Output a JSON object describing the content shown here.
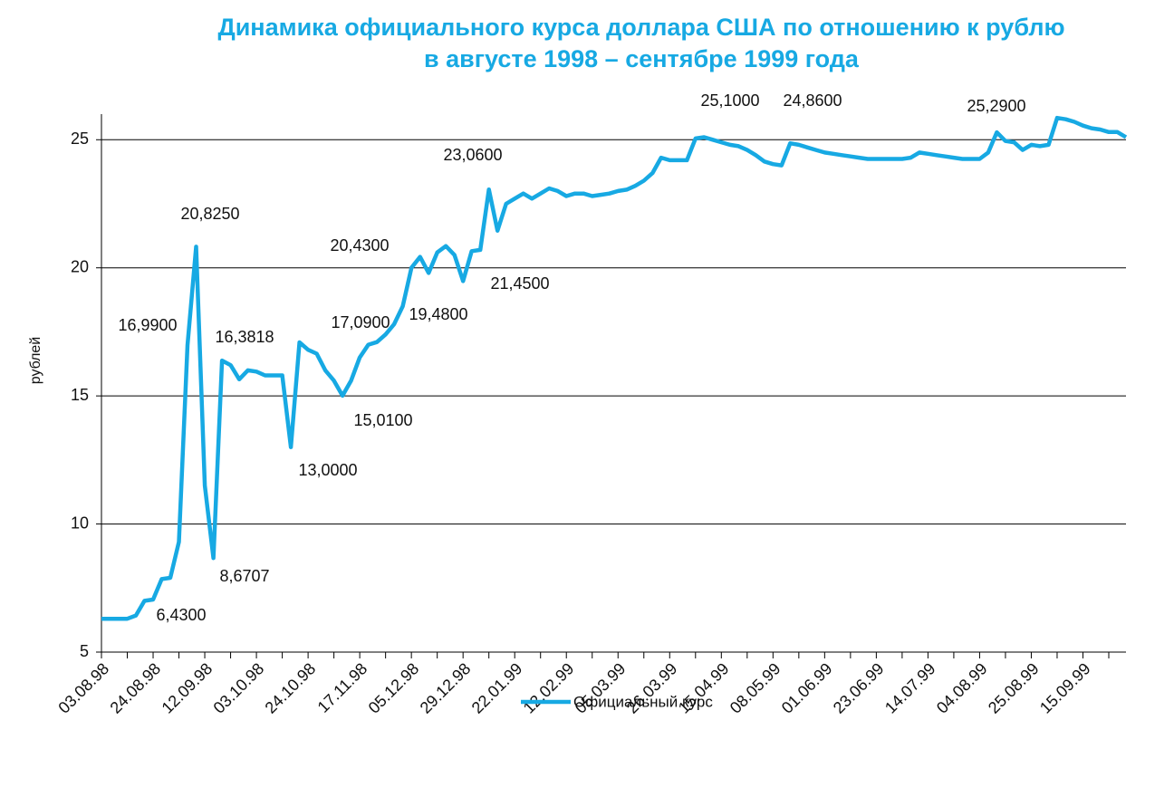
{
  "chart_data": {
    "type": "line",
    "title": "Динамика официального курса доллара США по отношению к рублю",
    "subtitle": "в августе 1998 – сентябре 1999 года",
    "y_label": "рублей",
    "categories": [
      "03.08.98",
      null,
      null,
      null,
      null,
      null,
      "24.08.98",
      null,
      null,
      null,
      null,
      null,
      "12.09.98",
      null,
      null,
      null,
      null,
      null,
      "03.10.98",
      null,
      null,
      null,
      null,
      null,
      "24.10.98",
      null,
      null,
      null,
      null,
      null,
      "17.11.98",
      null,
      null,
      null,
      null,
      null,
      "05.12.98",
      null,
      null,
      null,
      null,
      null,
      "29.12.98",
      null,
      null,
      null,
      null,
      null,
      "22.01.99",
      null,
      null,
      null,
      null,
      null,
      "12.02.99",
      null,
      null,
      null,
      null,
      null,
      "05.03.99",
      null,
      null,
      null,
      null,
      null,
      "26.03.99",
      null,
      null,
      null,
      null,
      null,
      "15.04.99",
      null,
      null,
      null,
      null,
      null,
      "08.05.99",
      null,
      null,
      null,
      null,
      null,
      "01.06.99",
      null,
      null,
      null,
      null,
      null,
      "23.06.99",
      null,
      null,
      null,
      null,
      null,
      "14.07.99",
      null,
      null,
      null,
      null,
      null,
      "04.08.99",
      null,
      null,
      null,
      null,
      null,
      "25.08.99",
      null,
      null,
      null,
      null,
      null,
      "15.09.99",
      null,
      null,
      null,
      null,
      null
    ],
    "series": [
      {
        "name": "Официальный курс",
        "color": "#17a9e3",
        "values": [
          6.3,
          6.3,
          6.3,
          6.3,
          6.43,
          7.0,
          7.05,
          7.85,
          7.9,
          9.3,
          16.99,
          20.825,
          11.5,
          8.6707,
          16.3818,
          16.2,
          15.65,
          16.0,
          15.95,
          15.8,
          15.8,
          15.8,
          13.0,
          17.09,
          16.8,
          16.65,
          16.0,
          15.6,
          15.01,
          15.6,
          16.5,
          17.0,
          17.1,
          17.4,
          17.8,
          18.5,
          20.0,
          20.43,
          19.8,
          20.6,
          20.85,
          20.5,
          19.48,
          20.65,
          20.7,
          23.06,
          21.45,
          22.5,
          22.7,
          22.9,
          22.7,
          22.9,
          23.1,
          23.0,
          22.8,
          22.9,
          22.9,
          22.8,
          22.85,
          22.9,
          23.0,
          23.05,
          23.2,
          23.4,
          23.7,
          24.3,
          24.2,
          24.2,
          24.2,
          25.05,
          25.1,
          25.0,
          24.9,
          24.8,
          24.75,
          24.6,
          24.4,
          24.15,
          24.05,
          24.0,
          24.86,
          24.8,
          24.7,
          24.6,
          24.5,
          24.45,
          24.4,
          24.35,
          24.3,
          24.25,
          24.25,
          24.25,
          24.25,
          24.25,
          24.3,
          24.5,
          24.45,
          24.4,
          24.35,
          24.3,
          24.25,
          24.25,
          24.25,
          24.5,
          25.29,
          24.95,
          24.9,
          24.6,
          24.8,
          24.75,
          24.8,
          25.85,
          25.8,
          25.7,
          25.55,
          25.45,
          25.4,
          25.3,
          25.3,
          25.1
        ],
        "value_labels": [
          null,
          null,
          null,
          null,
          "6,4300",
          null,
          null,
          null,
          null,
          null,
          "16,9900",
          "20,8250",
          null,
          "8,6707",
          "16,3818",
          null,
          null,
          null,
          null,
          null,
          null,
          null,
          "13,0000",
          "17,0900",
          null,
          null,
          null,
          null,
          "15,0100",
          null,
          null,
          null,
          null,
          null,
          null,
          null,
          null,
          "20,4300",
          null,
          null,
          null,
          null,
          "19,4800",
          null,
          null,
          "23,0600",
          "21,4500",
          null,
          null,
          null,
          null,
          null,
          null,
          null,
          null,
          null,
          null,
          null,
          null,
          null,
          null,
          null,
          null,
          null,
          null,
          null,
          null,
          null,
          null,
          null,
          "25,1000",
          null,
          null,
          null,
          null,
          null,
          null,
          null,
          null,
          null,
          "24,8600",
          null,
          null,
          null,
          null,
          null,
          null,
          null,
          null,
          null,
          null,
          null,
          null,
          null,
          null,
          null,
          null,
          null,
          null,
          null,
          null,
          null,
          null,
          null,
          "25,2900",
          null,
          null,
          null,
          null,
          null,
          null,
          null,
          null,
          null,
          null,
          null,
          null,
          null,
          null
        ]
      }
    ],
    "ylim": [
      5,
      26
    ],
    "yticks": [
      5,
      10,
      15,
      20,
      25
    ],
    "grid": true,
    "legend": "bottom"
  }
}
